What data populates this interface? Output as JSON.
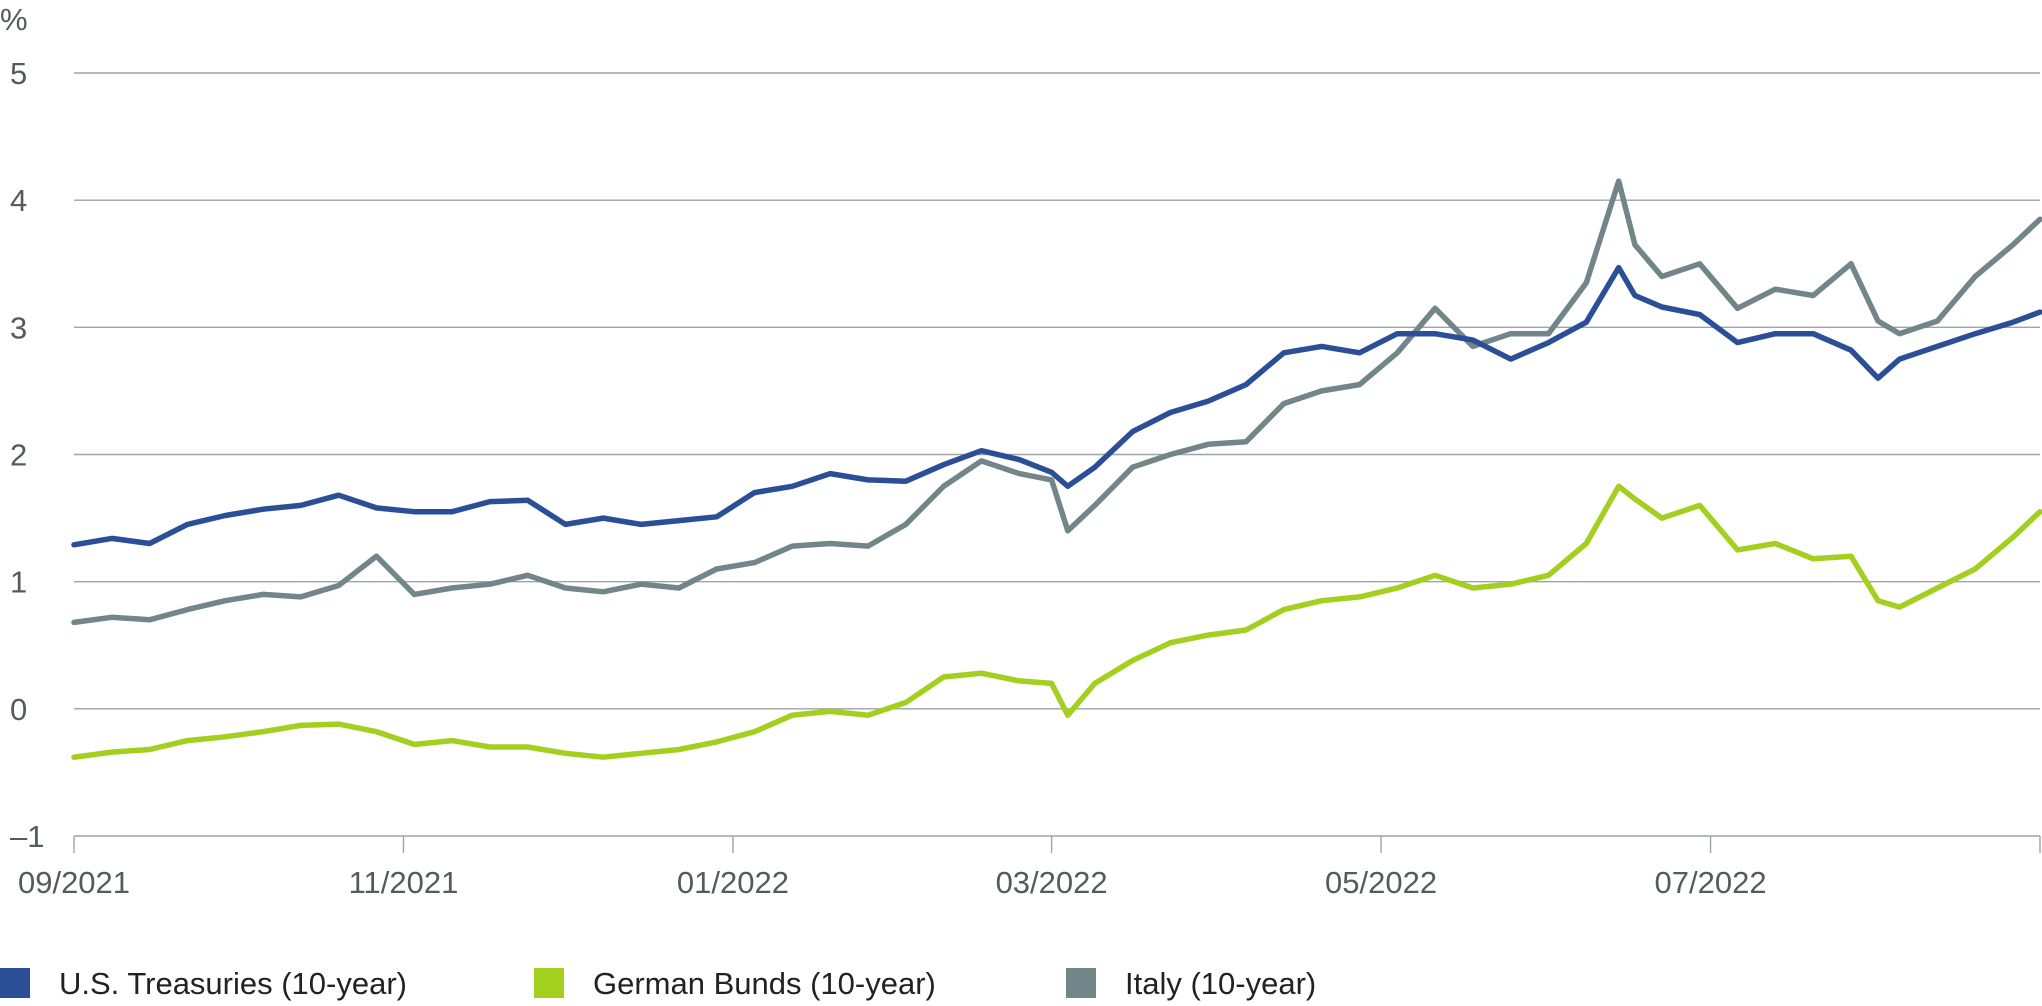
{
  "chart_data": {
    "type": "line",
    "unit_label": "%",
    "title": "",
    "xlabel": "",
    "ylabel": "",
    "ylim": [
      -1,
      5
    ],
    "y_ticks": [
      5,
      4,
      3,
      2,
      1,
      0,
      -1
    ],
    "y_tick_labels": [
      "5",
      "4",
      "3",
      "2",
      "1",
      "0",
      "–1"
    ],
    "x_domain": [
      "2021-09-01",
      "2022-08-31"
    ],
    "x_ticks": [
      {
        "date": "2021-09-01",
        "label": "09/2021"
      },
      {
        "date": "2021-11-01",
        "label": "11/2021"
      },
      {
        "date": "2022-01-01",
        "label": "01/2022"
      },
      {
        "date": "2022-03-01",
        "label": "03/2022"
      },
      {
        "date": "2022-05-01",
        "label": "05/2022"
      },
      {
        "date": "2022-07-01",
        "label": "07/2022"
      }
    ],
    "grid": true,
    "legend_position": "bottom",
    "series": [
      {
        "name": "U.S. Treasuries (10-year)",
        "color": "#2b4f96",
        "x": [
          "2021-09-01",
          "2021-09-08",
          "2021-09-15",
          "2021-09-22",
          "2021-09-29",
          "2021-10-06",
          "2021-10-13",
          "2021-10-20",
          "2021-10-27",
          "2021-11-03",
          "2021-11-10",
          "2021-11-17",
          "2021-11-24",
          "2021-12-01",
          "2021-12-08",
          "2021-12-15",
          "2021-12-22",
          "2021-12-29",
          "2022-01-05",
          "2022-01-12",
          "2022-01-19",
          "2022-01-26",
          "2022-02-02",
          "2022-02-09",
          "2022-02-16",
          "2022-02-23",
          "2022-03-01",
          "2022-03-04",
          "2022-03-09",
          "2022-03-16",
          "2022-03-23",
          "2022-03-30",
          "2022-04-06",
          "2022-04-13",
          "2022-04-20",
          "2022-04-27",
          "2022-05-04",
          "2022-05-11",
          "2022-05-18",
          "2022-05-25",
          "2022-06-01",
          "2022-06-08",
          "2022-06-14",
          "2022-06-17",
          "2022-06-22",
          "2022-06-29",
          "2022-07-06",
          "2022-07-13",
          "2022-07-20",
          "2022-07-27",
          "2022-08-01",
          "2022-08-05",
          "2022-08-12",
          "2022-08-19",
          "2022-08-26",
          "2022-08-31"
        ],
        "values": [
          1.29,
          1.34,
          1.3,
          1.45,
          1.52,
          1.57,
          1.6,
          1.68,
          1.58,
          1.55,
          1.55,
          1.63,
          1.64,
          1.45,
          1.5,
          1.45,
          1.48,
          1.51,
          1.7,
          1.75,
          1.85,
          1.8,
          1.79,
          1.92,
          2.03,
          1.96,
          1.86,
          1.75,
          1.9,
          2.18,
          2.33,
          2.42,
          2.55,
          2.8,
          2.85,
          2.8,
          2.95,
          2.95,
          2.9,
          2.75,
          2.88,
          3.04,
          3.47,
          3.25,
          3.16,
          3.1,
          2.88,
          2.95,
          2.95,
          2.82,
          2.6,
          2.75,
          2.85,
          2.95,
          3.04,
          3.12
        ]
      },
      {
        "name": "German Bunds (10-year)",
        "color": "#a3cf1f",
        "x": [
          "2021-09-01",
          "2021-09-08",
          "2021-09-15",
          "2021-09-22",
          "2021-09-29",
          "2021-10-06",
          "2021-10-13",
          "2021-10-20",
          "2021-10-27",
          "2021-11-03",
          "2021-11-10",
          "2021-11-17",
          "2021-11-24",
          "2021-12-01",
          "2021-12-08",
          "2021-12-15",
          "2021-12-22",
          "2021-12-29",
          "2022-01-05",
          "2022-01-12",
          "2022-01-19",
          "2022-01-26",
          "2022-02-02",
          "2022-02-09",
          "2022-02-16",
          "2022-02-23",
          "2022-03-01",
          "2022-03-04",
          "2022-03-09",
          "2022-03-16",
          "2022-03-23",
          "2022-03-30",
          "2022-04-06",
          "2022-04-13",
          "2022-04-20",
          "2022-04-27",
          "2022-05-04",
          "2022-05-11",
          "2022-05-18",
          "2022-05-25",
          "2022-06-01",
          "2022-06-08",
          "2022-06-14",
          "2022-06-17",
          "2022-06-22",
          "2022-06-29",
          "2022-07-06",
          "2022-07-13",
          "2022-07-20",
          "2022-07-27",
          "2022-08-01",
          "2022-08-05",
          "2022-08-12",
          "2022-08-19",
          "2022-08-26",
          "2022-08-31"
        ],
        "values": [
          -0.38,
          -0.34,
          -0.32,
          -0.25,
          -0.22,
          -0.18,
          -0.13,
          -0.12,
          -0.18,
          -0.28,
          -0.25,
          -0.3,
          -0.3,
          -0.35,
          -0.38,
          -0.35,
          -0.32,
          -0.26,
          -0.18,
          -0.05,
          -0.02,
          -0.05,
          0.05,
          0.25,
          0.28,
          0.22,
          0.2,
          -0.05,
          0.2,
          0.38,
          0.52,
          0.58,
          0.62,
          0.78,
          0.85,
          0.88,
          0.95,
          1.05,
          0.95,
          0.98,
          1.05,
          1.3,
          1.75,
          1.65,
          1.5,
          1.6,
          1.25,
          1.3,
          1.18,
          1.2,
          0.85,
          0.8,
          0.95,
          1.1,
          1.35,
          1.55
        ]
      },
      {
        "name": "Italy (10-year)",
        "color": "#728589",
        "x": [
          "2021-09-01",
          "2021-09-08",
          "2021-09-15",
          "2021-09-22",
          "2021-09-29",
          "2021-10-06",
          "2021-10-13",
          "2021-10-20",
          "2021-10-27",
          "2021-11-03",
          "2021-11-10",
          "2021-11-17",
          "2021-11-24",
          "2021-12-01",
          "2021-12-08",
          "2021-12-15",
          "2021-12-22",
          "2021-12-29",
          "2022-01-05",
          "2022-01-12",
          "2022-01-19",
          "2022-01-26",
          "2022-02-02",
          "2022-02-09",
          "2022-02-16",
          "2022-02-23",
          "2022-03-01",
          "2022-03-04",
          "2022-03-09",
          "2022-03-16",
          "2022-03-23",
          "2022-03-30",
          "2022-04-06",
          "2022-04-13",
          "2022-04-20",
          "2022-04-27",
          "2022-05-04",
          "2022-05-11",
          "2022-05-18",
          "2022-05-25",
          "2022-06-01",
          "2022-06-08",
          "2022-06-14",
          "2022-06-17",
          "2022-06-22",
          "2022-06-29",
          "2022-07-06",
          "2022-07-13",
          "2022-07-20",
          "2022-07-27",
          "2022-08-01",
          "2022-08-05",
          "2022-08-12",
          "2022-08-19",
          "2022-08-26",
          "2022-08-31"
        ],
        "values": [
          0.68,
          0.72,
          0.7,
          0.78,
          0.85,
          0.9,
          0.88,
          0.97,
          1.2,
          0.9,
          0.95,
          0.98,
          1.05,
          0.95,
          0.92,
          0.98,
          0.95,
          1.1,
          1.15,
          1.28,
          1.3,
          1.28,
          1.45,
          1.75,
          1.95,
          1.85,
          1.8,
          1.4,
          1.6,
          1.9,
          2.0,
          2.08,
          2.1,
          2.4,
          2.5,
          2.55,
          2.8,
          3.15,
          2.85,
          2.95,
          2.95,
          3.35,
          4.15,
          3.65,
          3.4,
          3.5,
          3.15,
          3.3,
          3.25,
          3.5,
          3.05,
          2.95,
          3.05,
          3.4,
          3.65,
          3.85
        ]
      }
    ]
  }
}
